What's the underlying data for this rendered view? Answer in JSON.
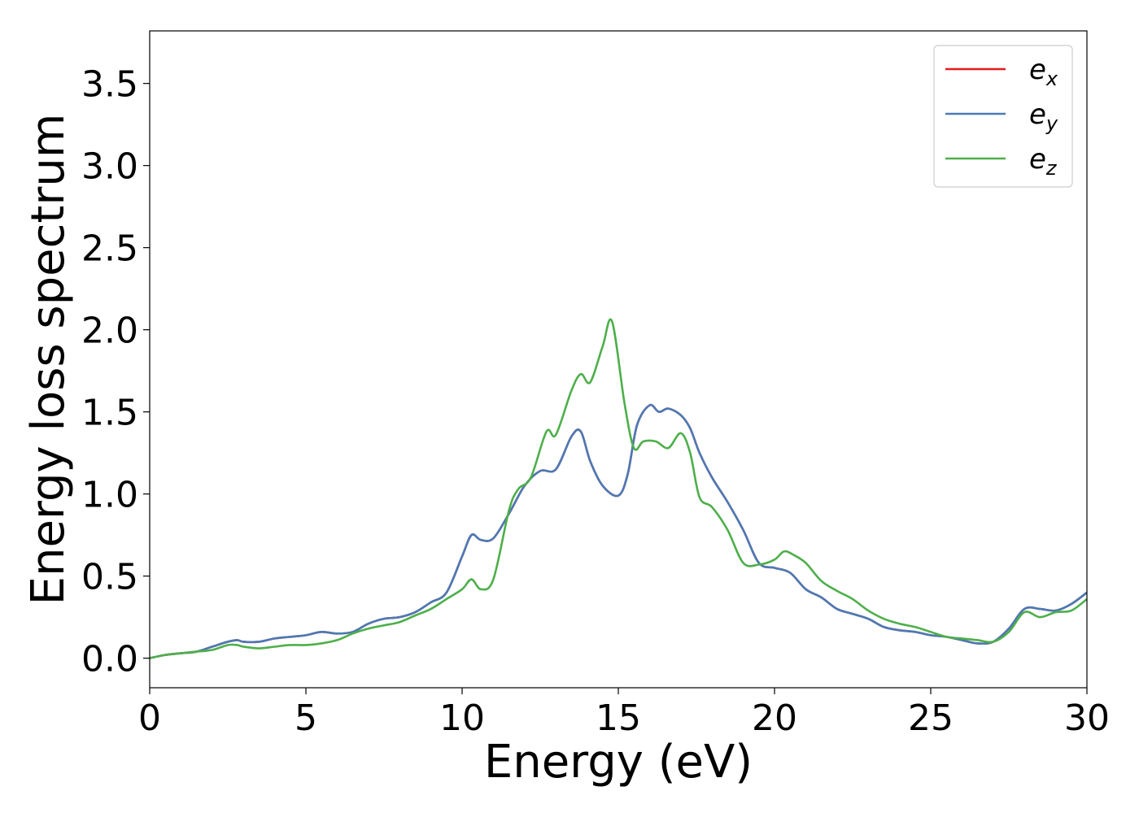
{
  "chart_data": {
    "type": "line",
    "xlabel": "Energy (eV)",
    "ylabel": "Energy loss spectrum",
    "xlim": [
      0,
      30
    ],
    "ylim": [
      -0.18,
      3.82
    ],
    "x_ticks": [
      0,
      5,
      10,
      15,
      20,
      25,
      30
    ],
    "x_tick_labels": [
      "0",
      "5",
      "10",
      "15",
      "20",
      "25",
      "30"
    ],
    "y_ticks": [
      0.0,
      0.5,
      1.0,
      1.5,
      2.0,
      2.5,
      3.0,
      3.5
    ],
    "y_tick_labels": [
      "0.0",
      "0.5",
      "1.0",
      "1.5",
      "2.0",
      "2.5",
      "3.0",
      "3.5"
    ],
    "grid": false,
    "legend_position": "top-right",
    "series": [
      {
        "name": "e_x",
        "legend_base": "e",
        "legend_sub": "x",
        "color": "#e41a1c",
        "x": [
          0,
          0.5,
          1,
          1.5,
          2,
          2.5,
          2.8,
          3,
          3.5,
          4,
          4.5,
          5,
          5.5,
          6,
          6.5,
          7,
          7.5,
          8,
          8.5,
          9,
          9.5,
          10,
          10.3,
          10.6,
          11,
          11.5,
          12,
          12.5,
          13,
          13.5,
          13.8,
          14.1,
          14.5,
          15,
          15.3,
          15.6,
          16,
          16.3,
          16.6,
          17,
          17.3,
          17.6,
          18,
          18.5,
          19,
          19.5,
          20,
          20.5,
          21,
          21.5,
          22,
          22.5,
          23,
          23.5,
          24,
          24.5,
          25,
          25.5,
          26,
          26.5,
          27,
          27.5,
          28,
          28.5,
          29,
          29.5,
          30
        ],
        "y": [
          0.0,
          0.02,
          0.03,
          0.04,
          0.07,
          0.1,
          0.11,
          0.1,
          0.1,
          0.12,
          0.13,
          0.14,
          0.16,
          0.15,
          0.16,
          0.21,
          0.24,
          0.25,
          0.28,
          0.34,
          0.4,
          0.62,
          0.75,
          0.72,
          0.73,
          0.88,
          1.05,
          1.14,
          1.15,
          1.35,
          1.38,
          1.2,
          1.05,
          0.99,
          1.12,
          1.42,
          1.54,
          1.5,
          1.52,
          1.48,
          1.4,
          1.25,
          1.1,
          0.95,
          0.78,
          0.58,
          0.55,
          0.52,
          0.42,
          0.37,
          0.3,
          0.27,
          0.24,
          0.19,
          0.17,
          0.16,
          0.14,
          0.13,
          0.11,
          0.09,
          0.1,
          0.18,
          0.3,
          0.3,
          0.29,
          0.33,
          0.4
        ]
      },
      {
        "name": "e_y",
        "legend_base": "e",
        "legend_sub": "y",
        "color": "#4a7ab5",
        "x": [
          0,
          0.5,
          1,
          1.5,
          2,
          2.5,
          2.8,
          3,
          3.5,
          4,
          4.5,
          5,
          5.5,
          6,
          6.5,
          7,
          7.5,
          8,
          8.5,
          9,
          9.5,
          10,
          10.3,
          10.6,
          11,
          11.5,
          12,
          12.5,
          13,
          13.5,
          13.8,
          14.1,
          14.5,
          15,
          15.3,
          15.6,
          16,
          16.3,
          16.6,
          17,
          17.3,
          17.6,
          18,
          18.5,
          19,
          19.5,
          20,
          20.5,
          21,
          21.5,
          22,
          22.5,
          23,
          23.5,
          24,
          24.5,
          25,
          25.5,
          26,
          26.5,
          27,
          27.5,
          28,
          28.5,
          29,
          29.5,
          30
        ],
        "y": [
          0.0,
          0.02,
          0.03,
          0.04,
          0.07,
          0.1,
          0.11,
          0.1,
          0.1,
          0.12,
          0.13,
          0.14,
          0.16,
          0.15,
          0.16,
          0.21,
          0.24,
          0.25,
          0.28,
          0.34,
          0.4,
          0.62,
          0.75,
          0.72,
          0.73,
          0.88,
          1.05,
          1.14,
          1.15,
          1.35,
          1.38,
          1.2,
          1.05,
          0.99,
          1.12,
          1.42,
          1.54,
          1.5,
          1.52,
          1.48,
          1.4,
          1.25,
          1.1,
          0.95,
          0.78,
          0.58,
          0.55,
          0.52,
          0.42,
          0.37,
          0.3,
          0.27,
          0.24,
          0.19,
          0.17,
          0.16,
          0.14,
          0.13,
          0.11,
          0.09,
          0.1,
          0.18,
          0.3,
          0.3,
          0.29,
          0.33,
          0.4
        ]
      },
      {
        "name": "e_z",
        "legend_base": "e",
        "legend_sub": "z",
        "color": "#4daf4a",
        "x": [
          0,
          0.5,
          1,
          1.5,
          2,
          2.5,
          2.8,
          3,
          3.5,
          4,
          4.5,
          5,
          5.5,
          6,
          6.5,
          7,
          7.5,
          8,
          8.5,
          9,
          9.5,
          10,
          10.3,
          10.6,
          11,
          11.5,
          11.8,
          12.2,
          12.7,
          13,
          13.5,
          13.8,
          14.1,
          14.5,
          14.8,
          15.2,
          15.5,
          15.8,
          16.2,
          16.6,
          17,
          17.3,
          17.6,
          18,
          18.5,
          19,
          19.5,
          20,
          20.3,
          20.6,
          21,
          21.5,
          22,
          22.5,
          23,
          23.5,
          24,
          24.5,
          25,
          25.5,
          26,
          26.5,
          27,
          27.5,
          28,
          28.5,
          29,
          29.5,
          30
        ],
        "y": [
          0.0,
          0.02,
          0.03,
          0.04,
          0.05,
          0.08,
          0.08,
          0.07,
          0.06,
          0.07,
          0.08,
          0.08,
          0.09,
          0.11,
          0.15,
          0.18,
          0.2,
          0.22,
          0.26,
          0.3,
          0.36,
          0.42,
          0.48,
          0.42,
          0.48,
          0.9,
          1.03,
          1.1,
          1.38,
          1.36,
          1.63,
          1.73,
          1.68,
          1.9,
          2.05,
          1.55,
          1.28,
          1.32,
          1.32,
          1.28,
          1.37,
          1.25,
          0.98,
          0.92,
          0.78,
          0.58,
          0.57,
          0.6,
          0.65,
          0.63,
          0.58,
          0.47,
          0.41,
          0.36,
          0.29,
          0.24,
          0.21,
          0.19,
          0.16,
          0.13,
          0.12,
          0.11,
          0.1,
          0.16,
          0.28,
          0.25,
          0.28,
          0.29,
          0.36
        ]
      }
    ]
  }
}
